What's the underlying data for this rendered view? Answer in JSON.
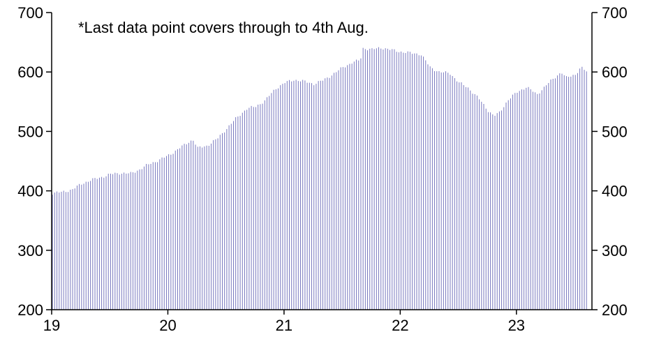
{
  "chart_data": {
    "type": "bar",
    "title": "",
    "xlabel": "",
    "ylabel": "",
    "annotation": "*Last data point covers through to 4th Aug.",
    "bar_color": "#6a6ab8",
    "axis_color": "#000000",
    "ylim": [
      200,
      700
    ],
    "xlim": [
      2019,
      2023.65
    ],
    "y_ticks_left": [
      "700",
      "600",
      "500",
      "400",
      "300",
      "200"
    ],
    "y_ticks_right": [
      "700",
      "600",
      "500",
      "400",
      "300",
      "200"
    ],
    "x_ticks": [
      "19",
      "20",
      "21",
      "22",
      "23"
    ],
    "grid": false,
    "keypoints": [
      [
        2019.0,
        396
      ],
      [
        2019.08,
        398
      ],
      [
        2019.17,
        402
      ],
      [
        2019.25,
        412
      ],
      [
        2019.33,
        418
      ],
      [
        2019.42,
        423
      ],
      [
        2019.5,
        428
      ],
      [
        2019.58,
        430
      ],
      [
        2019.67,
        429
      ],
      [
        2019.75,
        436
      ],
      [
        2019.83,
        445
      ],
      [
        2019.92,
        452
      ],
      [
        2020.0,
        460
      ],
      [
        2020.08,
        470
      ],
      [
        2020.17,
        482
      ],
      [
        2020.21,
        486
      ],
      [
        2020.25,
        472
      ],
      [
        2020.33,
        476
      ],
      [
        2020.42,
        488
      ],
      [
        2020.5,
        505
      ],
      [
        2020.58,
        522
      ],
      [
        2020.67,
        538
      ],
      [
        2020.75,
        542
      ],
      [
        2020.83,
        552
      ],
      [
        2020.92,
        572
      ],
      [
        2021.0,
        582
      ],
      [
        2021.08,
        587
      ],
      [
        2021.17,
        584
      ],
      [
        2021.25,
        580
      ],
      [
        2021.33,
        586
      ],
      [
        2021.42,
        597
      ],
      [
        2021.5,
        608
      ],
      [
        2021.58,
        616
      ],
      [
        2021.65,
        620
      ],
      [
        2021.67,
        640
      ],
      [
        2021.75,
        638
      ],
      [
        2021.83,
        641
      ],
      [
        2021.92,
        637
      ],
      [
        2022.0,
        634
      ],
      [
        2022.08,
        632
      ],
      [
        2022.17,
        630
      ],
      [
        2022.25,
        608
      ],
      [
        2022.33,
        600
      ],
      [
        2022.42,
        598
      ],
      [
        2022.5,
        582
      ],
      [
        2022.58,
        573
      ],
      [
        2022.67,
        555
      ],
      [
        2022.75,
        535
      ],
      [
        2022.8,
        526
      ],
      [
        2022.85,
        532
      ],
      [
        2022.92,
        553
      ],
      [
        2023.0,
        566
      ],
      [
        2023.08,
        575
      ],
      [
        2023.17,
        562
      ],
      [
        2023.25,
        578
      ],
      [
        2023.33,
        592
      ],
      [
        2023.38,
        600
      ],
      [
        2023.42,
        590
      ],
      [
        2023.5,
        596
      ],
      [
        2023.55,
        608
      ],
      [
        2023.6,
        600
      ]
    ]
  }
}
